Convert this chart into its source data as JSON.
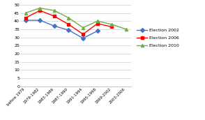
{
  "categories": [
    "before 1979",
    "1979-1982",
    "1983-1986",
    "1987-1990",
    "1991-1994",
    "1995-1998",
    "1999-2002",
    "2003-2006"
  ],
  "election_2002": [
    40.5,
    40.5,
    37.0,
    34.5,
    29.5,
    34.0,
    null,
    null
  ],
  "election_2006": [
    42.0,
    46.5,
    43.0,
    38.0,
    32.0,
    38.5,
    36.5,
    null
  ],
  "election_2010": [
    45.0,
    48.0,
    46.5,
    42.0,
    36.0,
    40.0,
    38.0,
    35.0
  ],
  "color_2002": "#4472C4",
  "color_2006": "#FF0000",
  "color_2010": "#70AD47",
  "marker_2002": "D",
  "marker_2006": "s",
  "marker_2010": "^",
  "ylim": [
    0,
    50
  ],
  "yticks": [
    0,
    5,
    10,
    15,
    20,
    25,
    30,
    35,
    40,
    45,
    50
  ],
  "legend_labels": [
    "Election 2002",
    "Election 2006",
    "Election 2010"
  ],
  "background_color": "#ffffff",
  "figsize": [
    2.94,
    1.72
  ],
  "dpi": 100
}
